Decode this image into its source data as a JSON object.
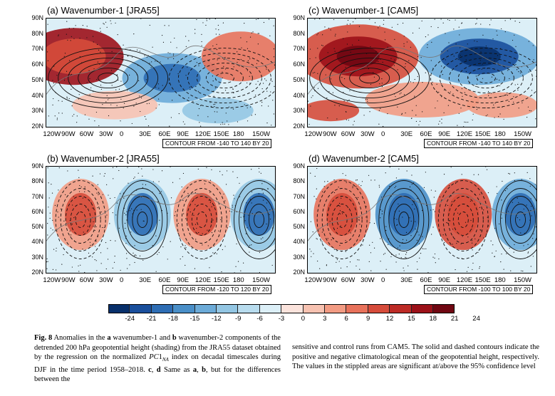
{
  "panels": [
    {
      "id": "a",
      "title": "(a) Wavenumber-1 [JRA55]",
      "contour": "CONTOUR FROM -140 TO 140 BY 20"
    },
    {
      "id": "c",
      "title": "(c) Wavenumber-1 [CAM5]",
      "contour": "CONTOUR FROM -140 TO 140 BY 20"
    },
    {
      "id": "b",
      "title": "(b) Wavenumber-2 [JRA55]",
      "contour": "CONTOUR FROM -120 TO 120 BY 20"
    },
    {
      "id": "d",
      "title": "(d) Wavenumber-2 [CAM5]",
      "contour": "CONTOUR FROM -100 TO 100 BY 20"
    }
  ],
  "y_ticks": [
    "90N",
    "80N",
    "70N",
    "60N",
    "50N",
    "40N",
    "30N",
    "20N"
  ],
  "x_ticks": [
    "120W",
    "90W",
    "60W",
    "30W",
    "0",
    "30E",
    "60E",
    "90E",
    "120E",
    "150E",
    "180",
    "150W"
  ],
  "colorbar": {
    "ticks": [
      "-24",
      "-21",
      "-18",
      "-15",
      "-12",
      "-9",
      "-6",
      "-3",
      "0",
      "3",
      "6",
      "9",
      "12",
      "15",
      "18",
      "21",
      "24"
    ],
    "colors": [
      "#08306b",
      "#1a4f9c",
      "#2e6db4",
      "#4a8fc8",
      "#6cabd8",
      "#93c6e3",
      "#b8dcee",
      "#dceff7",
      "#fbe3dc",
      "#f7c2b1",
      "#f29b83",
      "#e8725b",
      "#d64c3b",
      "#bd2b26",
      "#9c1119",
      "#700712"
    ]
  },
  "caption": {
    "label": "Fig. 8",
    "left": "Anomalies in the a wavenumber-1 and b wavenumber-2 components of the detrended 200 hPa geopotential height (shading) from the JRA55 dataset obtained by the regression on the normalized PC1NA index on decadal timescales during DJF in the time period 1958–2018. c, d Same as a, b, but for the differences between the",
    "right": "sensitive and control runs from CAM5. The solid and dashed contours indicate the positive and negative climatological mean of the geopotential height, respectively. The values in the stippled areas are significant at/above the 95% confidence level"
  }
}
